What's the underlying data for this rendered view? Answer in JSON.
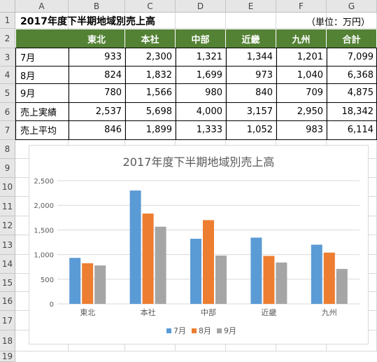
{
  "sheet": {
    "columns": [
      "A",
      "B",
      "C",
      "D",
      "E",
      "F",
      "G"
    ],
    "rows": [
      "1",
      "2",
      "3",
      "4",
      "5",
      "6",
      "7",
      "8",
      "9",
      "10",
      "11",
      "12",
      "13",
      "14",
      "15",
      "16",
      "17",
      "18",
      "19"
    ],
    "title": "2017年度下半期地域別売上高",
    "unit": "（単位：万円）",
    "table": {
      "headers": [
        "東北",
        "本社",
        "中部",
        "近畿",
        "九州",
        "合計"
      ],
      "rows": [
        {
          "label": "7月",
          "values": [
            "933",
            "2,300",
            "1,321",
            "1,344",
            "1,201",
            "7,099"
          ]
        },
        {
          "label": "8月",
          "values": [
            "824",
            "1,832",
            "1,699",
            "973",
            "1,040",
            "6,368"
          ]
        },
        {
          "label": "9月",
          "values": [
            "780",
            "1,566",
            "980",
            "840",
            "709",
            "4,875"
          ]
        },
        {
          "label": "売上実績",
          "values": [
            "2,537",
            "5,698",
            "4,000",
            "3,157",
            "2,950",
            "18,342"
          ]
        },
        {
          "label": "売上平均",
          "values": [
            "846",
            "1,899",
            "1,333",
            "1,052",
            "983",
            "6,114"
          ]
        }
      ]
    }
  },
  "chart_data": {
    "type": "bar",
    "title": "2017年度下半期地域別売上高",
    "categories": [
      "東北",
      "本社",
      "中部",
      "近畿",
      "九州"
    ],
    "series": [
      {
        "name": "7月",
        "values": [
          933,
          2300,
          1321,
          1344,
          1201
        ],
        "color": "#5b9bd5"
      },
      {
        "name": "8月",
        "values": [
          824,
          1832,
          1699,
          973,
          1040
        ],
        "color": "#ed7d31"
      },
      {
        "name": "9月",
        "values": [
          780,
          1566,
          980,
          840,
          709
        ],
        "color": "#a5a5a5"
      }
    ],
    "ylim": [
      0,
      2500
    ],
    "yticks": [
      "0",
      "500",
      "1,000",
      "1,500",
      "2,000",
      "2,500"
    ],
    "grid": true,
    "legend": "bottom"
  }
}
